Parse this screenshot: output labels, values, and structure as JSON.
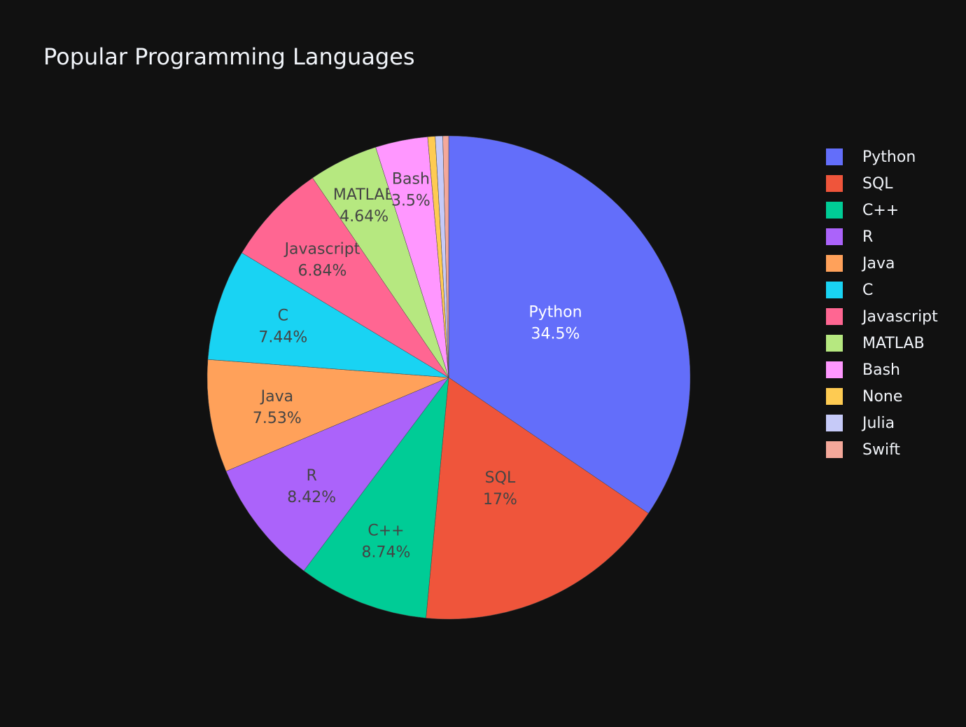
{
  "title": "Popular Programming Languages",
  "chart_data": {
    "type": "pie",
    "title": "Popular Programming Languages",
    "categories": [
      "Python",
      "SQL",
      "C++",
      "R",
      "Java",
      "C",
      "Javascript",
      "MATLAB",
      "Bash",
      "None",
      "Julia",
      "Swift"
    ],
    "values": [
      34.5,
      17,
      8.74,
      8.42,
      7.53,
      7.44,
      6.84,
      4.64,
      3.5,
      0.5,
      0.5,
      0.39
    ],
    "colors": [
      "#636efa",
      "#EF553B",
      "#00cc96",
      "#ab63fa",
      "#FFA15A",
      "#19d3f3",
      "#FF6692",
      "#B6E880",
      "#FF97FF",
      "#FECB52",
      "#c6caf8",
      "#f4a89a"
    ],
    "text_colors": [
      "#ffffff",
      "#444444",
      "#444444",
      "#444444",
      "#444444",
      "#444444",
      "#444444",
      "#444444",
      "#444444",
      "#444444",
      "#444444",
      "#444444"
    ],
    "labels_text": [
      "34.5%",
      "17%",
      "8.74%",
      "8.42%",
      "7.53%",
      "7.44%",
      "6.84%",
      "4.64%",
      "3.5%",
      "",
      "",
      ""
    ],
    "legend_position": "right",
    "start_angle": "12 o'clock, clockwise"
  },
  "legend": {
    "items": [
      {
        "label": "Python",
        "color": "#636efa"
      },
      {
        "label": "SQL",
        "color": "#EF553B"
      },
      {
        "label": "C++",
        "color": "#00cc96"
      },
      {
        "label": "R",
        "color": "#ab63fa"
      },
      {
        "label": "Java",
        "color": "#FFA15A"
      },
      {
        "label": "C",
        "color": "#19d3f3"
      },
      {
        "label": "Javascript",
        "color": "#FF6692"
      },
      {
        "label": "MATLAB",
        "color": "#B6E880"
      },
      {
        "label": "Bash",
        "color": "#FF97FF"
      },
      {
        "label": "None",
        "color": "#FECB52"
      },
      {
        "label": "Julia",
        "color": "#c6caf8"
      },
      {
        "label": "Swift",
        "color": "#f4a89a"
      }
    ]
  }
}
